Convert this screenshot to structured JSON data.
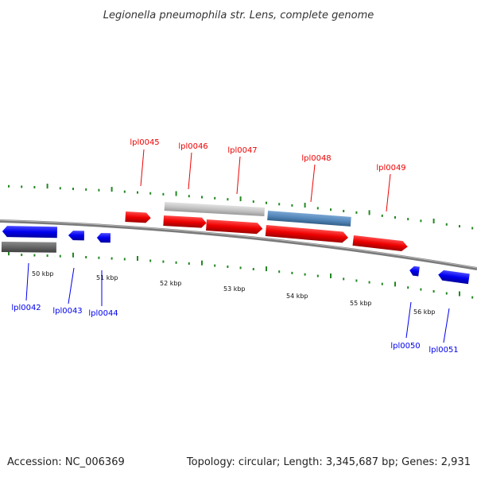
{
  "title": "Legionella pneumophila str. Lens, complete genome",
  "footer": {
    "accession": "Accession: NC_006369",
    "summary": "Topology: circular; Length: 3,345,687 bp; Genes: 2,931"
  },
  "colors": {
    "forward": "#ee0000",
    "reverse": "#0000ee",
    "backbone": "#888888",
    "ticks": "#228822",
    "gene_feature_gray": "#c4c4c4",
    "gene_feature_blue": "#5588bb",
    "gene_feature_dark": "#666666"
  },
  "axis": {
    "unit": "kbp",
    "labels": [
      "50 kbp",
      "51 kbp",
      "52 kbp",
      "53 kbp",
      "54 kbp",
      "55 kbp",
      "56 kbp"
    ]
  },
  "genes": [
    {
      "id": "lpl0042",
      "label": "lpl0042",
      "strand": "reverse"
    },
    {
      "id": "lpl0043",
      "label": "lpl0043",
      "strand": "reverse"
    },
    {
      "id": "lpl0044",
      "label": "lpl0044",
      "strand": "reverse"
    },
    {
      "id": "lpl0045",
      "label": "lpl0045",
      "strand": "forward"
    },
    {
      "id": "lpl0046",
      "label": "lpl0046",
      "strand": "forward"
    },
    {
      "id": "lpl0047",
      "label": "lpl0047",
      "strand": "forward"
    },
    {
      "id": "lpl0048",
      "label": "lpl0048",
      "strand": "forward"
    },
    {
      "id": "lpl0049",
      "label": "lpl0049",
      "strand": "forward"
    },
    {
      "id": "lpl0050",
      "label": "lpl0050",
      "strand": "reverse"
    },
    {
      "id": "lpl0051",
      "label": "lpl0051",
      "strand": "reverse"
    }
  ]
}
